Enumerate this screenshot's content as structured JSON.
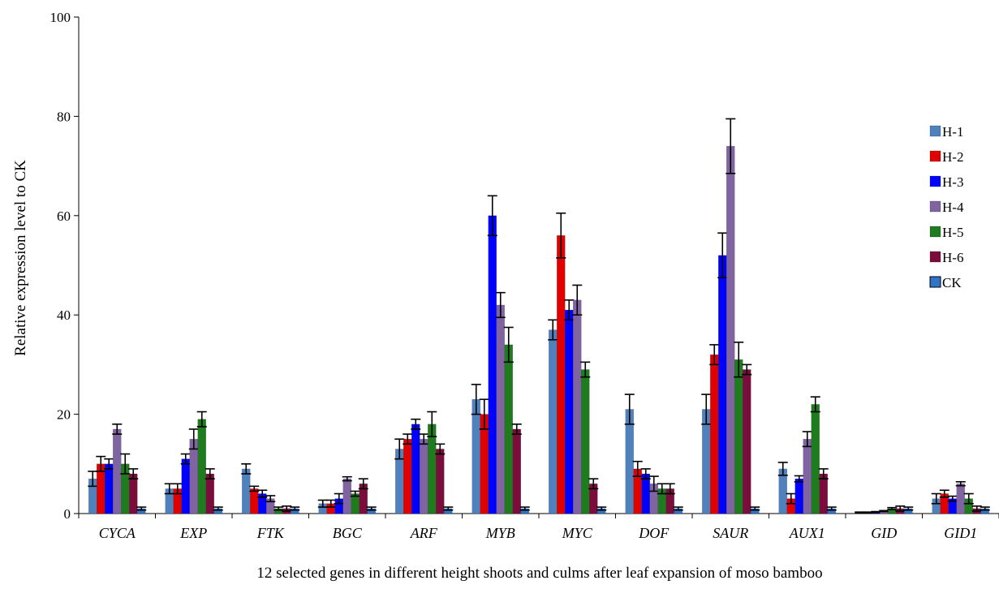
{
  "chart_data": {
    "type": "bar",
    "title": "",
    "xlabel": "12 selected genes in different height shoots and culms after leaf expansion of moso bamboo",
    "ylabel": "Relative expression level  to CK",
    "ylim": [
      0,
      100
    ],
    "yticks": [
      "0",
      "20",
      "40",
      "60",
      "80",
      "100"
    ],
    "grid": false,
    "legend_position": "right",
    "categories": [
      "CYCA",
      "EXP",
      "FTK",
      "BGC",
      "ARF",
      "MYB",
      "MYC",
      "DOF",
      "SAUR",
      "AUX1",
      "GID",
      "GID1"
    ],
    "series": [
      {
        "name": "H-1",
        "color": "#4F81BD",
        "values": [
          7,
          5,
          9,
          2,
          13,
          23,
          37,
          21,
          21,
          9,
          0.2,
          3
        ],
        "errors": [
          1.5,
          1,
          1,
          0.7,
          2,
          3,
          2,
          3,
          3,
          1.3,
          0.1,
          1
        ]
      },
      {
        "name": "H-2",
        "color": "#E00000",
        "values": [
          10,
          5,
          5,
          2,
          15,
          20,
          56,
          9,
          32,
          3,
          0.2,
          4
        ],
        "errors": [
          1.5,
          1,
          0.5,
          0.7,
          1,
          3,
          4.5,
          1.5,
          2,
          1,
          0.1,
          0.7
        ]
      },
      {
        "name": "H-3",
        "color": "#0000FF",
        "values": [
          10,
          11,
          4,
          3,
          18,
          60,
          41,
          8,
          52,
          7,
          0.3,
          3
        ],
        "errors": [
          1,
          1,
          0.7,
          1,
          1,
          4,
          2,
          1,
          4.5,
          0.6,
          0.1,
          0.5
        ]
      },
      {
        "name": "H-4",
        "color": "#8064A2",
        "values": [
          17,
          15,
          3,
          7,
          15,
          42,
          43,
          6,
          74,
          15,
          0.5,
          6
        ],
        "errors": [
          1,
          2,
          0.6,
          0.4,
          1,
          2.5,
          3,
          1.5,
          5.5,
          1.5,
          0.1,
          0.4
        ]
      },
      {
        "name": "H-5",
        "color": "#1E7B1E",
        "values": [
          10,
          19,
          1,
          4,
          18,
          34,
          29,
          5,
          31,
          22,
          1,
          3
        ],
        "errors": [
          2,
          1.5,
          0.3,
          0.5,
          2.5,
          3.5,
          1.5,
          1,
          3.5,
          1.5,
          0.2,
          1
        ]
      },
      {
        "name": "H-6",
        "color": "#7B0D3C",
        "values": [
          8,
          8,
          1,
          6,
          13,
          17,
          6,
          5,
          29,
          8,
          1,
          1
        ],
        "errors": [
          1,
          1,
          0.5,
          1,
          1,
          1,
          1,
          1,
          1,
          1,
          0.5,
          0.5
        ]
      },
      {
        "name": "CK",
        "color": "#2F75C7",
        "values": [
          1,
          1,
          1,
          1,
          1,
          1,
          1,
          1,
          1,
          1,
          1,
          1
        ],
        "errors": [
          0.3,
          0.3,
          0.3,
          0.3,
          0.3,
          0.3,
          0.3,
          0.3,
          0.3,
          0.3,
          0.3,
          0.3
        ]
      }
    ]
  }
}
